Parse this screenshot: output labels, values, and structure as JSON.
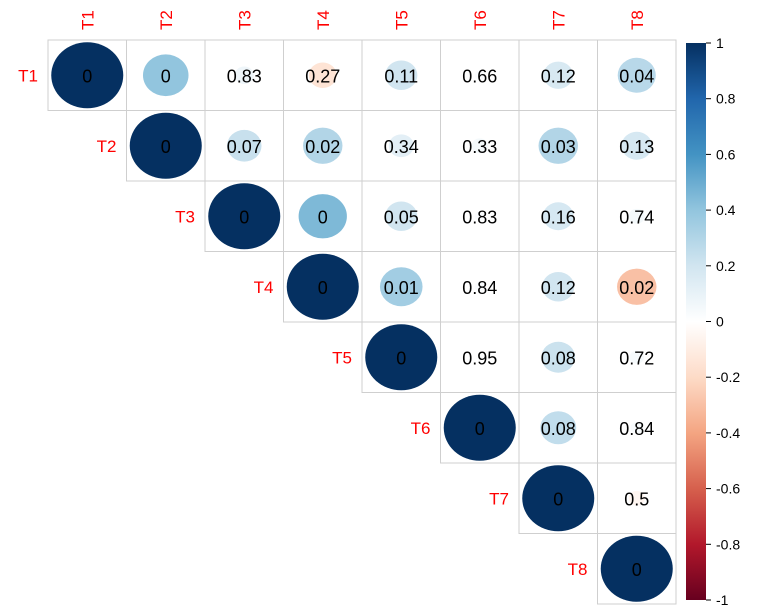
{
  "chart_data": {
    "type": "heatmap",
    "variables": [
      "T1",
      "T2",
      "T3",
      "T4",
      "T5",
      "T6",
      "T7",
      "T8"
    ],
    "layout": "upper-triangular",
    "glyph": "circle",
    "correlations": [
      [
        1.0,
        0.4,
        0.07,
        -0.15,
        0.2,
        0.02,
        0.17,
        0.28
      ],
      [
        null,
        1.0,
        0.23,
        0.3,
        0.12,
        0.05,
        0.3,
        0.18
      ],
      [
        null,
        null,
        1.0,
        0.45,
        0.2,
        0.02,
        0.18,
        0.05
      ],
      [
        null,
        null,
        null,
        1.0,
        0.35,
        0.02,
        0.2,
        -0.3
      ],
      [
        null,
        null,
        null,
        null,
        1.0,
        0.01,
        0.22,
        0.04
      ],
      [
        null,
        null,
        null,
        null,
        null,
        1.0,
        0.25,
        0.03
      ],
      [
        null,
        null,
        null,
        null,
        null,
        null,
        1.0,
        -0.05
      ],
      [
        null,
        null,
        null,
        null,
        null,
        null,
        null,
        1.0
      ]
    ],
    "p_values": [
      [
        "0",
        "0",
        "0.83",
        "0.27",
        "0.11",
        "0.66",
        "0.12",
        "0.04"
      ],
      [
        null,
        "0",
        "0.07",
        "0.02",
        "0.34",
        "0.33",
        "0.03",
        "0.13"
      ],
      [
        null,
        null,
        "0",
        "0",
        "0.05",
        "0.83",
        "0.16",
        "0.74"
      ],
      [
        null,
        null,
        null,
        "0",
        "0.01",
        "0.84",
        "0.12",
        "0.02"
      ],
      [
        null,
        null,
        null,
        null,
        "0",
        "0.95",
        "0.08",
        "0.72"
      ],
      [
        null,
        null,
        null,
        null,
        null,
        "0",
        "0.08",
        "0.84"
      ],
      [
        null,
        null,
        null,
        null,
        null,
        null,
        "0",
        "0.5"
      ],
      [
        null,
        null,
        null,
        null,
        null,
        null,
        null,
        "0"
      ]
    ],
    "colorbar": {
      "range": [
        -1,
        1
      ],
      "ticks": [
        "1",
        "0.8",
        "0.6",
        "0.4",
        "0.2",
        "0",
        "-0.2",
        "-0.4",
        "-0.6",
        "-0.8",
        "-1"
      ],
      "tick_values": [
        1,
        0.8,
        0.6,
        0.4,
        0.2,
        0,
        -0.2,
        -0.4,
        -0.6,
        -0.8,
        -1
      ],
      "position": "right"
    },
    "colors": {
      "stops": [
        "#67001f",
        "#b2182b",
        "#d6604d",
        "#f4a582",
        "#fddbc7",
        "#ffffff",
        "#d1e5f0",
        "#92c5de",
        "#4393c3",
        "#2166ac",
        "#053061"
      ],
      "label": "#ff0000",
      "grid": "#cfcfcf"
    }
  }
}
